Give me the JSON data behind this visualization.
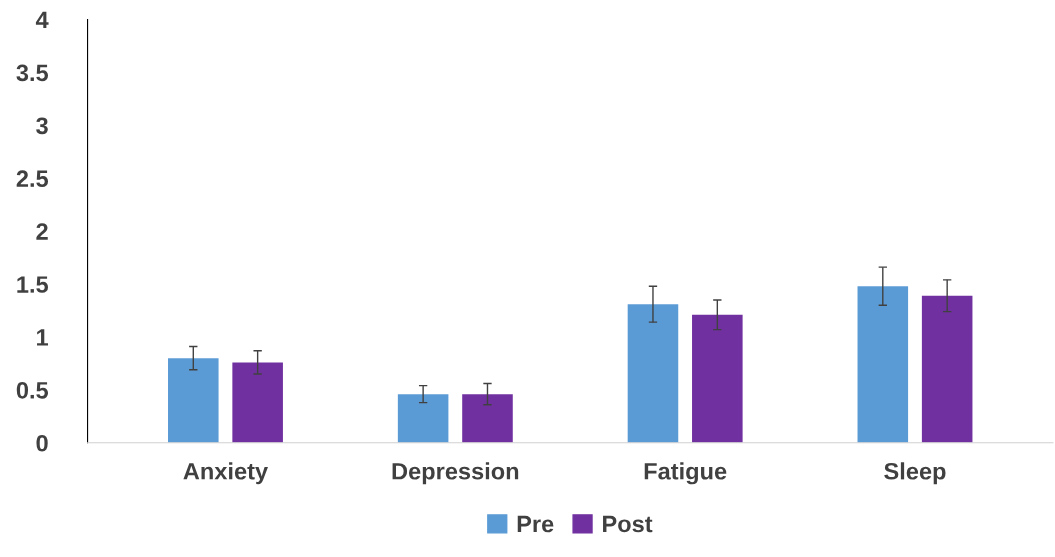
{
  "chart_data": {
    "type": "bar",
    "categories": [
      "Anxiety",
      "Depression",
      "Fatigue",
      "Sleep"
    ],
    "series": [
      {
        "name": "Pre",
        "color": "#5b9bd5",
        "values": [
          0.8,
          0.46,
          1.31,
          1.48
        ],
        "errors": [
          0.11,
          0.08,
          0.17,
          0.18
        ]
      },
      {
        "name": "Post",
        "color": "#7030a0",
        "values": [
          0.76,
          0.46,
          1.21,
          1.39
        ],
        "errors": [
          0.11,
          0.1,
          0.14,
          0.15
        ]
      }
    ],
    "ylim": [
      0,
      4
    ],
    "yticks": [
      0,
      0.5,
      1,
      1.5,
      2,
      2.5,
      3,
      3.5,
      4
    ],
    "grid": false,
    "legend": "bottom"
  }
}
